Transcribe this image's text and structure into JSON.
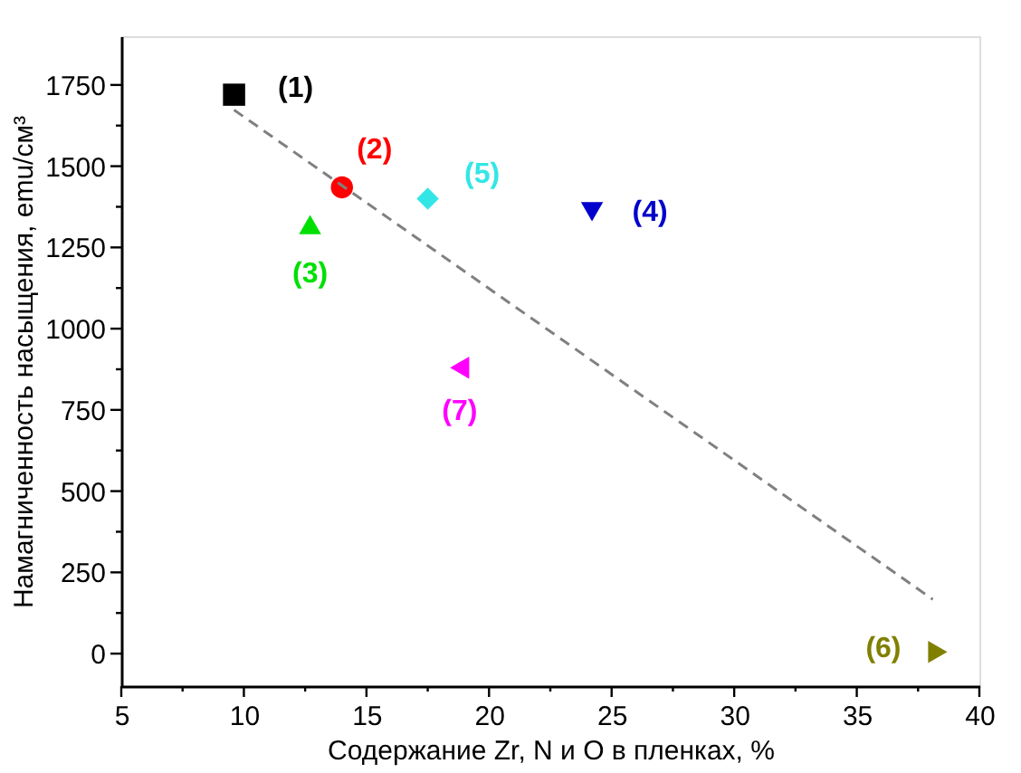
{
  "chart_data": {
    "type": "scatter",
    "xlabel": "Содержание Zr, N и O в пленках, %",
    "ylabel": "Намагниченность насыщения, emu/см³",
    "xlim": [
      5,
      40
    ],
    "ylim": [
      -100,
      1900
    ],
    "xticks": [
      5,
      {
        "value": 7.5,
        "label": null
      },
      10,
      {
        "value": 12.5,
        "label": null
      },
      15,
      {
        "value": 17.5,
        "label": null
      },
      20,
      {
        "value": 22.5,
        "label": null
      },
      25,
      {
        "value": 27.5,
        "label": null
      },
      30,
      {
        "value": 32.5,
        "label": null
      },
      35,
      {
        "value": 37.5,
        "label": null
      },
      40
    ],
    "yticks": [
      0,
      {
        "value": 125,
        "label": null
      },
      250,
      {
        "value": 375,
        "label": null
      },
      500,
      {
        "value": 625,
        "label": null
      },
      750,
      {
        "value": 875,
        "label": null
      },
      1000,
      {
        "value": 1125,
        "label": null
      },
      1250,
      {
        "value": 1375,
        "label": null
      },
      1500,
      {
        "value": 1625,
        "label": null
      },
      1750
    ],
    "grid": false,
    "series": [
      {
        "name": "(1)",
        "color": "#000000",
        "marker": "square",
        "x": [
          9.6
        ],
        "values": [
          1720
        ]
      },
      {
        "name": "(2)",
        "color": "#ff0000",
        "marker": "circle",
        "x": [
          14.0
        ],
        "values": [
          1435
        ]
      },
      {
        "name": "(3)",
        "color": "#00e000",
        "marker": "triangle",
        "x": [
          12.7
        ],
        "values": [
          1320
        ]
      },
      {
        "name": "(4)",
        "color": "#0000cc",
        "marker": "triangle-down",
        "x": [
          24.2
        ],
        "values": [
          1360
        ]
      },
      {
        "name": "(5)",
        "color": "#33e6e6",
        "marker": "diamond",
        "x": [
          17.5
        ],
        "values": [
          1400
        ]
      },
      {
        "name": "(6)",
        "color": "#808000",
        "marker": "triangle-right",
        "x": [
          38.3
        ],
        "values": [
          5
        ]
      },
      {
        "name": "(7)",
        "color": "#ff00ff",
        "marker": "triangle-left",
        "x": [
          18.8
        ],
        "values": [
          880
        ]
      },
      {
        "type": "line",
        "color": "#808080",
        "line_style": "dashed",
        "marker": "none",
        "x": [
          9.6,
          38.1
        ],
        "values": [
          1673,
          167
        ]
      }
    ]
  }
}
